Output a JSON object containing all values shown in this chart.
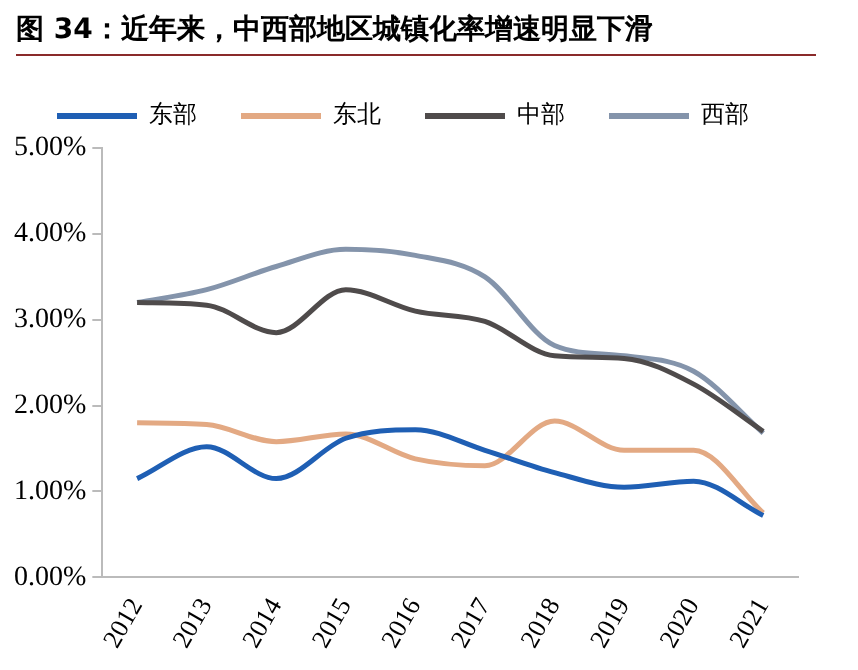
{
  "chart_data": {
    "type": "line",
    "title": "图 34：近年来，中西部地区城镇化率增速明显下滑",
    "categories": [
      "2012",
      "2013",
      "2014",
      "2015",
      "2016",
      "2017",
      "2018",
      "2019",
      "2020",
      "2021"
    ],
    "series": [
      {
        "name": "东部",
        "color": "#1f5fb4",
        "values": [
          1.15,
          1.52,
          1.15,
          1.62,
          1.72,
          1.48,
          1.22,
          1.05,
          1.12,
          0.72
        ]
      },
      {
        "name": "东北",
        "color": "#e3a983",
        "values": [
          1.8,
          1.78,
          1.58,
          1.67,
          1.38,
          1.3,
          1.82,
          1.48,
          1.48,
          0.75
        ]
      },
      {
        "name": "中部",
        "color": "#4f4b4b",
        "values": [
          3.2,
          3.17,
          2.85,
          3.35,
          3.1,
          2.98,
          2.58,
          2.55,
          2.25,
          1.7
        ]
      },
      {
        "name": "西部",
        "color": "#8494ab",
        "values": [
          3.2,
          3.35,
          3.62,
          3.82,
          3.75,
          3.5,
          2.7,
          2.58,
          2.4,
          1.68
        ]
      }
    ],
    "ylim": [
      0,
      5
    ],
    "yticks": [
      {
        "value": 0,
        "label": "0.00%"
      },
      {
        "value": 1,
        "label": "1.00%"
      },
      {
        "value": 2,
        "label": "2.00%"
      },
      {
        "value": 3,
        "label": "3.00%"
      },
      {
        "value": 4,
        "label": "4.00%"
      },
      {
        "value": 5,
        "label": "5.00%"
      }
    ],
    "grid": false,
    "legend": "top",
    "marker": "none",
    "line_style": "solid"
  }
}
